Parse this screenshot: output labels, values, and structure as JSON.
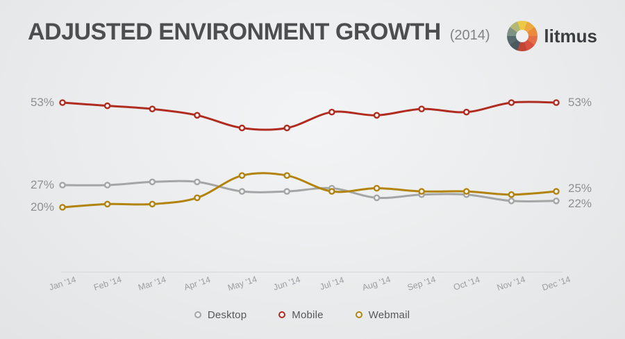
{
  "title": "ADJUSTED ENVIRONMENT GROWTH",
  "subtitle": "(2014)",
  "brand": {
    "name": "litmus",
    "wheel_colors": [
      "#ecc844",
      "#eaa83e",
      "#e98a3c",
      "#e66e45",
      "#d85140",
      "#bf4537",
      "#4a5a5e",
      "#57696c",
      "#7e9183",
      "#b3b777"
    ]
  },
  "chart_data": {
    "type": "line",
    "title": "ADJUSTED ENVIRONMENT GROWTH (2014)",
    "categories": [
      "Jan '14",
      "Feb '14",
      "Mar '14",
      "Apr '14",
      "May '14",
      "Jun '14",
      "Jul '14",
      "Aug '14",
      "Sep '14",
      "Oct '14",
      "Nov '14",
      "Dec '14"
    ],
    "series": [
      {
        "name": "Desktop",
        "color": "#a3a6a5",
        "values": [
          27,
          27,
          28,
          28,
          25,
          25,
          26,
          23,
          24,
          24,
          22,
          22
        ],
        "start_label": "27%",
        "end_label": "22%"
      },
      {
        "name": "Mobile",
        "color": "#b02c20",
        "values": [
          53,
          52,
          51,
          49,
          45,
          45,
          50,
          49,
          51,
          50,
          53,
          53
        ],
        "start_label": "53%",
        "end_label": "53%"
      },
      {
        "name": "Webmail",
        "color": "#b2830d",
        "values": [
          20,
          21,
          21,
          23,
          30,
          30,
          25,
          26,
          25,
          25,
          24,
          25
        ],
        "start_label": "20%",
        "end_label": "25%"
      }
    ],
    "xlabel": "",
    "ylabel": "",
    "ylim": [
      18,
      56
    ],
    "grid": false,
    "legend_position": "bottom",
    "legend": [
      "Desktop",
      "Mobile",
      "Webmail"
    ]
  }
}
